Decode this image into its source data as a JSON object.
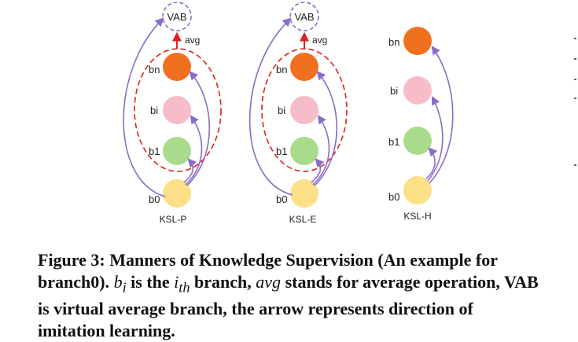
{
  "figure": {
    "panels": [
      {
        "name": "KSL-P",
        "label": "KSL-P",
        "vab_label": "VAB",
        "avg_label": "avg",
        "nodes": [
          {
            "label": "bn",
            "color": "#f07020"
          },
          {
            "label": "bi",
            "color": "#f6bcc8"
          },
          {
            "label": "b1",
            "color": "#a8dc8c"
          },
          {
            "label": "b0",
            "color": "#fce088"
          }
        ]
      },
      {
        "name": "KSL-E",
        "label": "KSL-E",
        "vab_label": "VAB",
        "avg_label": "avg",
        "nodes": [
          {
            "label": "bn",
            "color": "#f07020"
          },
          {
            "label": "bi",
            "color": "#f6bcc8"
          },
          {
            "label": "b1",
            "color": "#a8dc8c"
          },
          {
            "label": "b0",
            "color": "#fce088"
          }
        ]
      },
      {
        "name": "KSL-H",
        "label": "KSL-H",
        "nodes": [
          {
            "label": "bn",
            "color": "#f07020"
          },
          {
            "label": "bi",
            "color": "#f6bcc8"
          },
          {
            "label": "b1",
            "color": "#a8dc8c"
          },
          {
            "label": "b0",
            "color": "#fce088"
          }
        ]
      }
    ],
    "colors": {
      "arrow": "#8a6cc8",
      "avg_arrow": "#e02020",
      "dashed_circle": "#e02020",
      "vab_border": "#8a6cc8"
    }
  },
  "caption": {
    "figure_label": "Figure 3:",
    "text1": " Manners of Knowledge Supervision (An example for branch0). ",
    "bi": "b",
    "bi_sub": "i",
    "text2": " is the ",
    "ith": "i",
    "ith_sub": "th",
    "text3": " branch, ",
    "avg": "avg",
    "text4": " stands for average operation, VAB is virtual average branch, the arrow represents direction of imitation learning."
  }
}
